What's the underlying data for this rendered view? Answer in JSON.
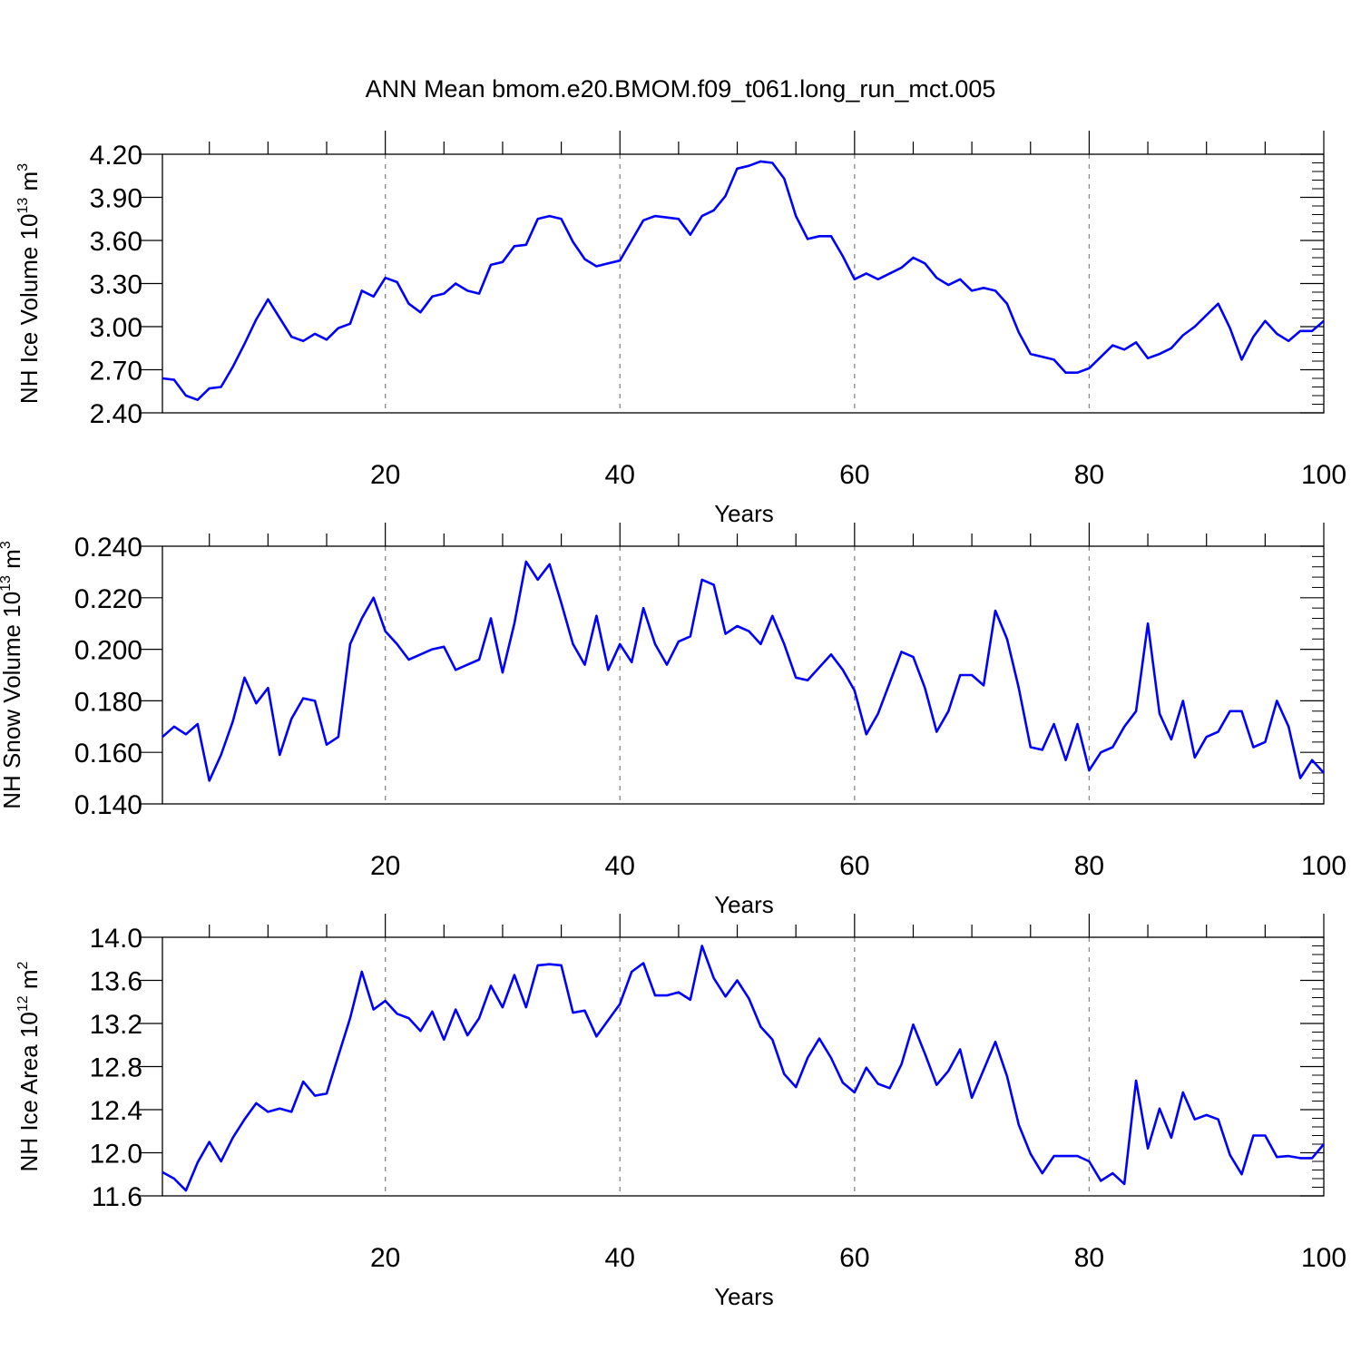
{
  "title": "ANN Mean bmom.e20.BMOM.f09_t061.long_run_mct.005",
  "chart_data": [
    {
      "type": "line",
      "xlabel": "Years",
      "ylabel": {
        "main": "NH Ice Volume 10",
        "sup": "13",
        "unit": " m",
        "unit_sup": "3"
      },
      "xlim": [
        1,
        100
      ],
      "ylim": [
        2.4,
        4.2
      ],
      "yticks": [
        "2.40",
        "2.70",
        "3.00",
        "3.30",
        "3.60",
        "3.90",
        "4.20"
      ],
      "xticks": [
        "20",
        "40",
        "60",
        "80",
        "100"
      ],
      "color": "#0000ff",
      "x": [
        1,
        2,
        3,
        4,
        5,
        6,
        7,
        8,
        9,
        10,
        11,
        12,
        13,
        14,
        15,
        16,
        17,
        18,
        19,
        20,
        21,
        22,
        23,
        24,
        25,
        26,
        27,
        28,
        29,
        30,
        31,
        32,
        33,
        34,
        35,
        36,
        37,
        38,
        39,
        40,
        41,
        42,
        43,
        44,
        45,
        46,
        47,
        48,
        49,
        50,
        51,
        52,
        53,
        54,
        55,
        56,
        57,
        58,
        59,
        60,
        61,
        62,
        63,
        64,
        65,
        66,
        67,
        68,
        69,
        70,
        71,
        72,
        73,
        74,
        75,
        76,
        77,
        78,
        79,
        80,
        81,
        82,
        83,
        84,
        85,
        86,
        87,
        88,
        89,
        90,
        91,
        92,
        93,
        94,
        95,
        96,
        97,
        98,
        99,
        100
      ],
      "values": [
        2.64,
        2.63,
        2.52,
        2.49,
        2.57,
        2.58,
        2.72,
        2.88,
        3.05,
        3.19,
        3.06,
        2.93,
        2.9,
        2.95,
        2.91,
        2.99,
        3.02,
        3.25,
        3.21,
        3.34,
        3.31,
        3.16,
        3.1,
        3.21,
        3.23,
        3.3,
        3.25,
        3.23,
        3.43,
        3.45,
        3.56,
        3.57,
        3.75,
        3.77,
        3.75,
        3.59,
        3.47,
        3.42,
        3.44,
        3.46,
        3.6,
        3.74,
        3.77,
        3.76,
        3.75,
        3.64,
        3.77,
        3.81,
        3.91,
        4.1,
        4.12,
        4.15,
        4.14,
        4.03,
        3.77,
        3.61,
        3.63,
        3.63,
        3.49,
        3.33,
        3.37,
        3.33,
        3.37,
        3.41,
        3.48,
        3.44,
        3.34,
        3.29,
        3.33,
        3.25,
        3.27,
        3.25,
        3.16,
        2.96,
        2.81,
        2.79,
        2.77,
        2.68,
        2.68,
        2.71,
        2.79,
        2.87,
        2.84,
        2.89,
        2.78,
        2.81,
        2.85,
        2.94,
        3.0,
        3.08,
        3.16,
        2.99,
        2.77,
        2.93,
        3.04,
        2.95,
        2.9,
        2.97,
        2.97,
        3.04
      ]
    },
    {
      "type": "line",
      "xlabel": "Years",
      "ylabel": {
        "main": "NH Snow Volume 10",
        "sup": "13",
        "unit": " m",
        "unit_sup": "3"
      },
      "xlim": [
        1,
        100
      ],
      "ylim": [
        0.14,
        0.24
      ],
      "yticks": [
        "0.140",
        "0.160",
        "0.180",
        "0.200",
        "0.220",
        "0.240"
      ],
      "xticks": [
        "20",
        "40",
        "60",
        "80",
        "100"
      ],
      "color": "#0000ff",
      "x": [
        1,
        2,
        3,
        4,
        5,
        6,
        7,
        8,
        9,
        10,
        11,
        12,
        13,
        14,
        15,
        16,
        17,
        18,
        19,
        20,
        21,
        22,
        23,
        24,
        25,
        26,
        27,
        28,
        29,
        30,
        31,
        32,
        33,
        34,
        35,
        36,
        37,
        38,
        39,
        40,
        41,
        42,
        43,
        44,
        45,
        46,
        47,
        48,
        49,
        50,
        51,
        52,
        53,
        54,
        55,
        56,
        57,
        58,
        59,
        60,
        61,
        62,
        63,
        64,
        65,
        66,
        67,
        68,
        69,
        70,
        71,
        72,
        73,
        74,
        75,
        76,
        77,
        78,
        79,
        80,
        81,
        82,
        83,
        84,
        85,
        86,
        87,
        88,
        89,
        90,
        91,
        92,
        93,
        94,
        95,
        96,
        97,
        98,
        99,
        100
      ],
      "values": [
        0.166,
        0.17,
        0.167,
        0.171,
        0.149,
        0.159,
        0.172,
        0.189,
        0.179,
        0.185,
        0.159,
        0.173,
        0.181,
        0.18,
        0.163,
        0.166,
        0.202,
        0.212,
        0.22,
        0.207,
        0.202,
        0.196,
        0.198,
        0.2,
        0.201,
        0.192,
        0.194,
        0.196,
        0.212,
        0.191,
        0.21,
        0.234,
        0.227,
        0.233,
        0.218,
        0.202,
        0.194,
        0.213,
        0.192,
        0.202,
        0.195,
        0.216,
        0.202,
        0.194,
        0.203,
        0.205,
        0.227,
        0.225,
        0.206,
        0.209,
        0.207,
        0.202,
        0.213,
        0.202,
        0.189,
        0.188,
        0.193,
        0.198,
        0.192,
        0.184,
        0.167,
        0.175,
        0.187,
        0.199,
        0.197,
        0.185,
        0.168,
        0.176,
        0.19,
        0.19,
        0.186,
        0.215,
        0.204,
        0.185,
        0.162,
        0.161,
        0.171,
        0.157,
        0.171,
        0.153,
        0.16,
        0.162,
        0.17,
        0.176,
        0.21,
        0.175,
        0.165,
        0.18,
        0.158,
        0.166,
        0.168,
        0.176,
        0.176,
        0.162,
        0.164,
        0.18,
        0.17,
        0.15,
        0.157,
        0.152
      ]
    },
    {
      "type": "line",
      "xlabel": "Years",
      "ylabel": {
        "main": "NH Ice Area 10",
        "sup": "12",
        "unit": " m",
        "unit_sup": "2"
      },
      "xlim": [
        1,
        100
      ],
      "ylim": [
        11.6,
        14.0
      ],
      "yticks": [
        "11.6",
        "12.0",
        "12.4",
        "12.8",
        "13.2",
        "13.6",
        "14.0"
      ],
      "xticks": [
        "20",
        "40",
        "60",
        "80",
        "100"
      ],
      "color": "#0000ff",
      "x": [
        1,
        2,
        3,
        4,
        5,
        6,
        7,
        8,
        9,
        10,
        11,
        12,
        13,
        14,
        15,
        16,
        17,
        18,
        19,
        20,
        21,
        22,
        23,
        24,
        25,
        26,
        27,
        28,
        29,
        30,
        31,
        32,
        33,
        34,
        35,
        36,
        37,
        38,
        39,
        40,
        41,
        42,
        43,
        44,
        45,
        46,
        47,
        48,
        49,
        50,
        51,
        52,
        53,
        54,
        55,
        56,
        57,
        58,
        59,
        60,
        61,
        62,
        63,
        64,
        65,
        66,
        67,
        68,
        69,
        70,
        71,
        72,
        73,
        74,
        75,
        76,
        77,
        78,
        79,
        80,
        81,
        82,
        83,
        84,
        85,
        86,
        87,
        88,
        89,
        90,
        91,
        92,
        93,
        94,
        95,
        96,
        97,
        98,
        99,
        100
      ],
      "values": [
        11.82,
        11.76,
        11.65,
        11.91,
        12.1,
        11.92,
        12.14,
        12.31,
        12.46,
        12.38,
        12.41,
        12.38,
        12.66,
        12.53,
        12.55,
        12.9,
        13.25,
        13.68,
        13.33,
        13.41,
        13.29,
        13.25,
        13.13,
        13.31,
        13.05,
        13.33,
        13.09,
        13.25,
        13.55,
        13.35,
        13.65,
        13.35,
        13.74,
        13.75,
        13.74,
        13.3,
        13.32,
        13.08,
        13.23,
        13.38,
        13.68,
        13.76,
        13.46,
        13.46,
        13.49,
        13.42,
        13.92,
        13.62,
        13.45,
        13.6,
        13.43,
        13.17,
        13.05,
        12.73,
        12.61,
        12.88,
        13.06,
        12.88,
        12.65,
        12.56,
        12.79,
        12.64,
        12.6,
        12.82,
        13.19,
        12.92,
        12.63,
        12.76,
        12.96,
        12.51,
        12.77,
        13.03,
        12.71,
        12.26,
        11.99,
        11.81,
        11.97,
        11.97,
        11.97,
        11.92,
        11.74,
        11.81,
        11.71,
        12.67,
        12.04,
        12.41,
        12.14,
        12.56,
        12.31,
        12.35,
        12.31,
        11.98,
        11.8,
        12.16,
        12.16,
        11.96,
        11.97,
        11.95,
        11.95,
        12.08
      ]
    }
  ]
}
